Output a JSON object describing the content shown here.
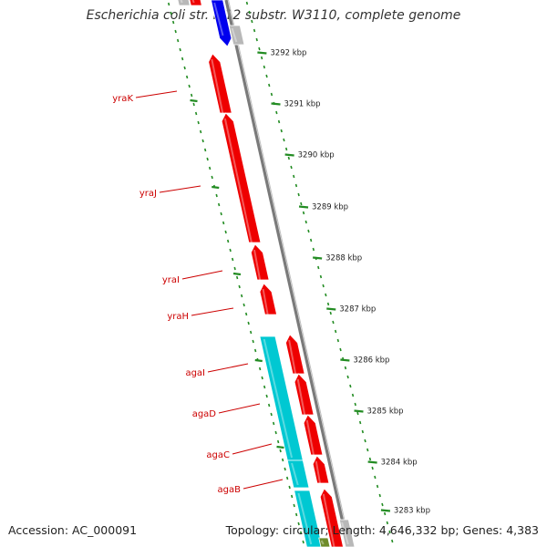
{
  "title": "Escherichia coli str. K-12 substr. W3110, complete genome",
  "accession": "Accession: AC_000091",
  "stats": "Topology: circular; Length: 4,646,332 bp; Genes: 4,383",
  "scale": {
    "unit": "kbp",
    "ticks": [
      "3292 kbp",
      "3291 kbp",
      "3290 kbp",
      "3289 kbp",
      "3288 kbp",
      "3287 kbp",
      "3286 kbp",
      "3285 kbp",
      "3284 kbp",
      "3283 kbp"
    ]
  },
  "genes": [
    {
      "name": "yraK",
      "strand": "reverse",
      "color": "#ee0000"
    },
    {
      "name": "yraJ",
      "strand": "reverse",
      "color": "#ee0000"
    },
    {
      "name": "yraI",
      "strand": "reverse",
      "color": "#ee0000"
    },
    {
      "name": "yraH",
      "strand": "reverse",
      "color": "#ee0000"
    },
    {
      "name": "agaI",
      "strand": "reverse",
      "color": "#ee0000"
    },
    {
      "name": "agaD",
      "strand": "reverse",
      "color": "#ee0000"
    },
    {
      "name": "agaC",
      "strand": "reverse",
      "color": "#ee0000"
    },
    {
      "name": "agaB",
      "strand": "reverse",
      "color": "#ee0000"
    }
  ],
  "colors": {
    "gene_forward": "#ee0000",
    "gene_cyan": "#00c8d2",
    "gene_blue": "#0000ee",
    "gene_gray": "#b8b8b8",
    "gene_olive": "#6e8c2a",
    "backbone": "#7a7a7a",
    "tick_green": "#238c23",
    "label_red": "#cc0000"
  }
}
